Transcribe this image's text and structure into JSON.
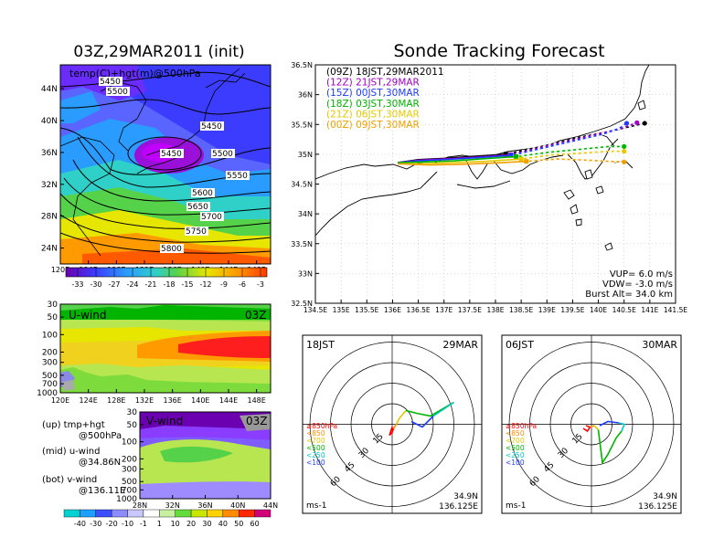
{
  "left": {
    "title": "03Z,29MAR2011 (init)",
    "map": {
      "label": "temp(C)+hgt(m)@500hPa",
      "lat_ticks": [
        "44N",
        "40N",
        "36N",
        "32N",
        "28N",
        "24N"
      ],
      "lon_ticks": [
        "120E",
        "124E",
        "128E",
        "132E",
        "136E",
        "140E",
        "144E",
        "148E"
      ],
      "contours": [
        "5450",
        "5500",
        "5450",
        "5450",
        "5500",
        "5550",
        "5600",
        "5650",
        "5700",
        "5750",
        "5800"
      ]
    },
    "temp_colorbar": [
      "-33",
      "-30",
      "-27",
      "-24",
      "-21",
      "-18",
      "-15",
      "-12",
      "-9",
      "-6",
      "-3"
    ],
    "uwind": {
      "label": "U-wind",
      "time": "03Z",
      "p_ticks": [
        "30",
        "50",
        "100",
        "200",
        "300",
        "500",
        "700",
        "1000"
      ],
      "lon_ticks": [
        "120E",
        "124E",
        "128E",
        "132E",
        "136E",
        "140E",
        "144E",
        "148E"
      ]
    },
    "vwind": {
      "label": "V-wind",
      "time": "03Z",
      "p_ticks": [
        "30",
        "50",
        "100",
        "200",
        "300",
        "500",
        "700",
        "1000"
      ],
      "lat_ticks": [
        "28N",
        "32N",
        "36N",
        "40N",
        "44N"
      ]
    },
    "legend": [
      {
        "k": "(up)",
        "l1": "tmp+hgt",
        "l2": "@500hPa"
      },
      {
        "k": "(mid)",
        "l1": "u-wind",
        "l2": "@34.86N"
      },
      {
        "k": "(bot)",
        "l1": "v-wind",
        "l2": "@136.11E"
      }
    ],
    "wind_colorbar": [
      "-40",
      "-30",
      "-20",
      "-10",
      "-1",
      "1",
      "10",
      "20",
      "30",
      "40",
      "50",
      "60"
    ]
  },
  "right": {
    "title": "Sonde Tracking Forecast",
    "legend": [
      {
        "text": "(09Z)  18JST,29MAR2011",
        "color": "#000000"
      },
      {
        "text": "(12Z)  21JST,29MAR",
        "color": "#a000c8"
      },
      {
        "text": "(15Z)  00JST,30MAR",
        "color": "#1e3cff"
      },
      {
        "text": "(18Z)  03JST,30MAR",
        "color": "#00b400"
      },
      {
        "text": "(21Z)  06JST,30MAR",
        "color": "#e6c800"
      },
      {
        "text": "(00Z)  09JST,30MAR",
        "color": "#f0a000"
      }
    ],
    "lat_ticks": [
      "36.5N",
      "36N",
      "35.5N",
      "35N",
      "34.5N",
      "34N",
      "33.5N",
      "33N",
      "32.5N"
    ],
    "lon_ticks": [
      "134.5E",
      "135E",
      "135.5E",
      "136E",
      "136.5E",
      "137E",
      "137.5E",
      "138E",
      "138.5E",
      "139E",
      "139.5E",
      "140E",
      "140.5E",
      "141E",
      "141.5E"
    ],
    "params": [
      "VUP=  6.0  m/s",
      "VDW= -3.0  m/s",
      "Burst Alt= 34.0  km"
    ]
  },
  "hodo1": {
    "time": "18JST",
    "date": "29MAR",
    "rings": [
      "15",
      "30",
      "45",
      "60"
    ],
    "levels": [
      {
        "t": "≥850hPa",
        "c": "#ff0000"
      },
      {
        "t": "<850",
        "c": "#ff8c00"
      },
      {
        "t": "<700",
        "c": "#e6c800"
      },
      {
        "t": "<500",
        "c": "#00b400"
      },
      {
        "t": "<250",
        "c": "#00c8c8"
      },
      {
        "t": "<100",
        "c": "#1e3cff"
      }
    ],
    "unit": "ms-1",
    "lat": "34.9N",
    "lon": "136.125E"
  },
  "hodo2": {
    "time": "06JST",
    "date": "30MAR",
    "rings": [
      "15",
      "30",
      "45",
      "60"
    ],
    "levels": [
      {
        "t": "≥850hPa",
        "c": "#ff0000"
      },
      {
        "t": "<850",
        "c": "#ff8c00"
      },
      {
        "t": "<700",
        "c": "#e6c800"
      },
      {
        "t": "<500",
        "c": "#00b400"
      },
      {
        "t": "<250",
        "c": "#00c8c8"
      },
      {
        "t": "<100",
        "c": "#1e3cff"
      }
    ],
    "unit": "ms-1",
    "lat": "34.9N",
    "lon": "136.125E"
  },
  "chart_data": [
    {
      "type": "heatmap",
      "title": "03Z,29MAR2011 (init)",
      "subtitle": "temp(C)+hgt(m)@500hPa",
      "xlim": [
        120,
        150
      ],
      "ylim": [
        22,
        47
      ],
      "colorbar": [
        -33,
        -30,
        -27,
        -24,
        -21,
        -18,
        -15,
        -12,
        -9,
        -6,
        -3
      ],
      "height_contours": [
        5450,
        5500,
        5550,
        5600,
        5650,
        5700,
        5750,
        5800
      ]
    },
    {
      "type": "heatmap",
      "title": "U-wind",
      "xlim": [
        120,
        150
      ],
      "ylevels": [
        30,
        50,
        100,
        200,
        300,
        500,
        700,
        1000
      ]
    },
    {
      "type": "heatmap",
      "title": "V-wind",
      "xlim": [
        28,
        44
      ],
      "ylevels": [
        30,
        50,
        100,
        200,
        300,
        500,
        700,
        1000
      ]
    },
    {
      "type": "line",
      "title": "Sonde Tracking Forecast",
      "xlim": [
        134.5,
        141.5
      ],
      "ylim": [
        32.5,
        36.5
      ],
      "series": [
        {
          "name": "(09Z) 18JST,29MAR2011",
          "x": [
            136.1,
            136.5,
            137.0,
            137.5,
            138.2,
            139.0,
            139.6,
            140.2,
            140.6,
            140.9
          ],
          "y": [
            34.86,
            34.91,
            34.93,
            34.96,
            35.0,
            35.15,
            35.28,
            35.38,
            35.46,
            35.52
          ]
        },
        {
          "name": "(12Z) 21JST,29MAR",
          "x": [
            136.1,
            136.5,
            137.0,
            137.6,
            138.3,
            139.0,
            139.6,
            140.1,
            140.5,
            140.75
          ],
          "y": [
            34.86,
            34.9,
            34.92,
            34.95,
            34.99,
            35.14,
            35.26,
            35.36,
            35.45,
            35.53
          ]
        },
        {
          "name": "(15Z) 00JST,30MAR",
          "x": [
            136.1,
            136.5,
            137.0,
            137.6,
            138.3,
            139.0,
            139.6,
            140.1,
            140.4,
            140.55
          ],
          "y": [
            34.86,
            34.89,
            34.91,
            34.94,
            34.98,
            35.12,
            35.24,
            35.34,
            35.43,
            35.52
          ]
        },
        {
          "name": "(18Z) 03JST,30MAR",
          "x": [
            136.1,
            136.6,
            137.2,
            137.7,
            138.4,
            139.0,
            139.6,
            140.2,
            140.5
          ],
          "y": [
            34.86,
            34.87,
            34.89,
            34.92,
            34.96,
            35.03,
            35.08,
            35.13,
            35.13
          ]
        },
        {
          "name": "(21Z) 06JST,30MAR",
          "x": [
            136.1,
            136.6,
            137.2,
            137.8,
            138.5,
            139.1,
            139.7,
            140.2,
            140.5
          ],
          "y": [
            34.84,
            34.84,
            34.86,
            34.88,
            34.92,
            34.99,
            35.02,
            35.05,
            35.05
          ]
        },
        {
          "name": "(00Z) 09JST,30MAR",
          "x": [
            136.1,
            136.7,
            137.3,
            137.9,
            138.6,
            139.2,
            139.8,
            140.2,
            140.5
          ],
          "y": [
            34.84,
            34.82,
            34.83,
            34.85,
            34.88,
            34.92,
            34.9,
            34.88,
            34.87
          ]
        }
      ]
    },
    {
      "type": "line",
      "title": "18JST 29MAR hodograph",
      "xlim": [
        -60,
        60
      ],
      "ylim": [
        -60,
        60
      ],
      "series": [
        {
          "name": "≥850hPa",
          "x": [
            0,
            0,
            -2,
            0,
            1
          ],
          "y": [
            -5,
            -2,
            -8,
            -6,
            -3
          ]
        },
        {
          "name": "<850",
          "x": [
            1,
            3
          ],
          "y": [
            -3,
            0
          ]
        },
        {
          "name": "<700",
          "x": [
            3,
            5,
            10
          ],
          "y": [
            0,
            4,
            10
          ]
        },
        {
          "name": "<500",
          "x": [
            10,
            18,
            28,
            45
          ],
          "y": [
            10,
            8,
            6,
            16
          ]
        },
        {
          "name": "<250",
          "x": [
            45,
            30
          ],
          "y": [
            16,
            6
          ]
        },
        {
          "name": "<100",
          "x": [
            30,
            22,
            14
          ],
          "y": [
            6,
            -2,
            2
          ]
        }
      ]
    },
    {
      "type": "line",
      "title": "06JST 30MAR hodograph",
      "xlim": [
        -60,
        60
      ],
      "ylim": [
        -60,
        60
      ],
      "series": [
        {
          "name": "≥850hPa",
          "x": [
            -6,
            -3,
            -1,
            -4
          ],
          "y": [
            -3,
            -5,
            -2,
            -1
          ]
        },
        {
          "name": "<850",
          "x": [
            -1,
            2
          ],
          "y": [
            -2,
            -1
          ]
        },
        {
          "name": "<700",
          "x": [
            2,
            5
          ],
          "y": [
            -1,
            -4
          ]
        },
        {
          "name": "<500",
          "x": [
            5,
            8,
            12,
            18,
            22
          ],
          "y": [
            -4,
            -28,
            -22,
            -10,
            -5
          ]
        },
        {
          "name": "<250",
          "x": [
            22,
            24,
            20
          ],
          "y": [
            -5,
            0,
            1
          ]
        },
        {
          "name": "<100",
          "x": [
            20,
            12,
            6
          ],
          "y": [
            1,
            2,
            -1
          ]
        }
      ]
    }
  ]
}
